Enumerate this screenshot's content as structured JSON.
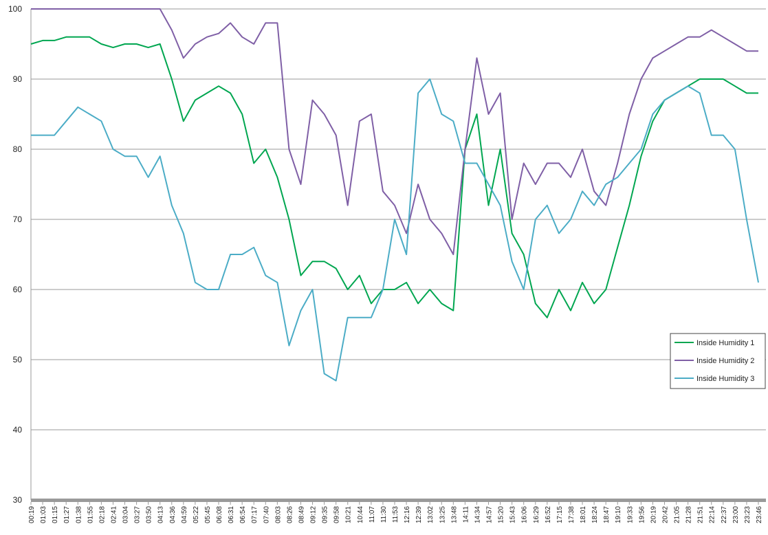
{
  "chart_data": {
    "type": "line",
    "categories": [
      "00:19",
      "01:03",
      "01:15",
      "01:27",
      "01:38",
      "01:55",
      "02:18",
      "02:41",
      "03:04",
      "03:27",
      "03:50",
      "04:13",
      "04:36",
      "04:59",
      "05:22",
      "05:45",
      "06:08",
      "06:31",
      "06:54",
      "07:17",
      "07:40",
      "08:03",
      "08:26",
      "08:49",
      "09:12",
      "09:35",
      "09:58",
      "10:21",
      "10:44",
      "11:07",
      "11:30",
      "11:53",
      "12:16",
      "12:39",
      "13:02",
      "13:25",
      "13:48",
      "14:11",
      "14:34",
      "14:57",
      "15:20",
      "15:43",
      "16:06",
      "16:29",
      "16:52",
      "17:15",
      "17:38",
      "18:01",
      "18:24",
      "18:47",
      "19:10",
      "19:33",
      "19:56",
      "20:19",
      "20:42",
      "21:05",
      "21:28",
      "21:51",
      "22:14",
      "22:37",
      "23:00",
      "23:23",
      "23:46"
    ],
    "series": [
      {
        "name": "Inside Humidity 1",
        "color": "#00a650",
        "values": [
          95,
          95.5,
          95.5,
          96,
          96,
          96,
          95,
          94.5,
          95,
          95,
          94.5,
          95,
          90,
          84,
          87,
          88,
          89,
          88,
          85,
          78,
          80,
          76,
          70,
          62,
          64,
          64,
          63,
          60,
          62,
          58,
          60,
          60,
          61,
          58,
          60,
          58,
          57,
          80,
          85,
          72,
          80,
          68,
          65,
          58,
          56,
          60,
          57,
          61,
          58,
          60,
          66,
          72,
          79,
          84,
          87,
          88,
          89,
          90,
          90,
          90,
          89,
          88,
          88
        ]
      },
      {
        "name": "Inside Humidity 2",
        "color": "#7f5fa6",
        "values": [
          100,
          100,
          100,
          100,
          100,
          100,
          100,
          100,
          100,
          100,
          100,
          100,
          97,
          93,
          95,
          96,
          96.5,
          98,
          96,
          95,
          98,
          98,
          80,
          75,
          87,
          85,
          82,
          72,
          84,
          85,
          74,
          72,
          68,
          75,
          70,
          68,
          65,
          80,
          93,
          85,
          88,
          70,
          78,
          75,
          78,
          78,
          76,
          80,
          74,
          72,
          78,
          85,
          90,
          93,
          94,
          95,
          96,
          96,
          97,
          96,
          95,
          94,
          94
        ]
      },
      {
        "name": "Inside Humidity 3",
        "color": "#4bacc6",
        "values": [
          82,
          82,
          82,
          84,
          86,
          85,
          84,
          80,
          79,
          79,
          76,
          79,
          72,
          68,
          61,
          60,
          60,
          65,
          65,
          66,
          62,
          61,
          52,
          57,
          60,
          48,
          47,
          56,
          56,
          56,
          60,
          70,
          65,
          88,
          90,
          85,
          84,
          78,
          78,
          75,
          72,
          64,
          60,
          70,
          72,
          68,
          70,
          74,
          72,
          75,
          76,
          78,
          80,
          85,
          87,
          88,
          89,
          88,
          82,
          82,
          80,
          70,
          61
        ]
      }
    ],
    "ylim": [
      30,
      100
    ],
    "yticks": [
      30,
      40,
      50,
      60,
      70,
      80,
      90,
      100
    ],
    "grid": true,
    "legend": "right"
  }
}
